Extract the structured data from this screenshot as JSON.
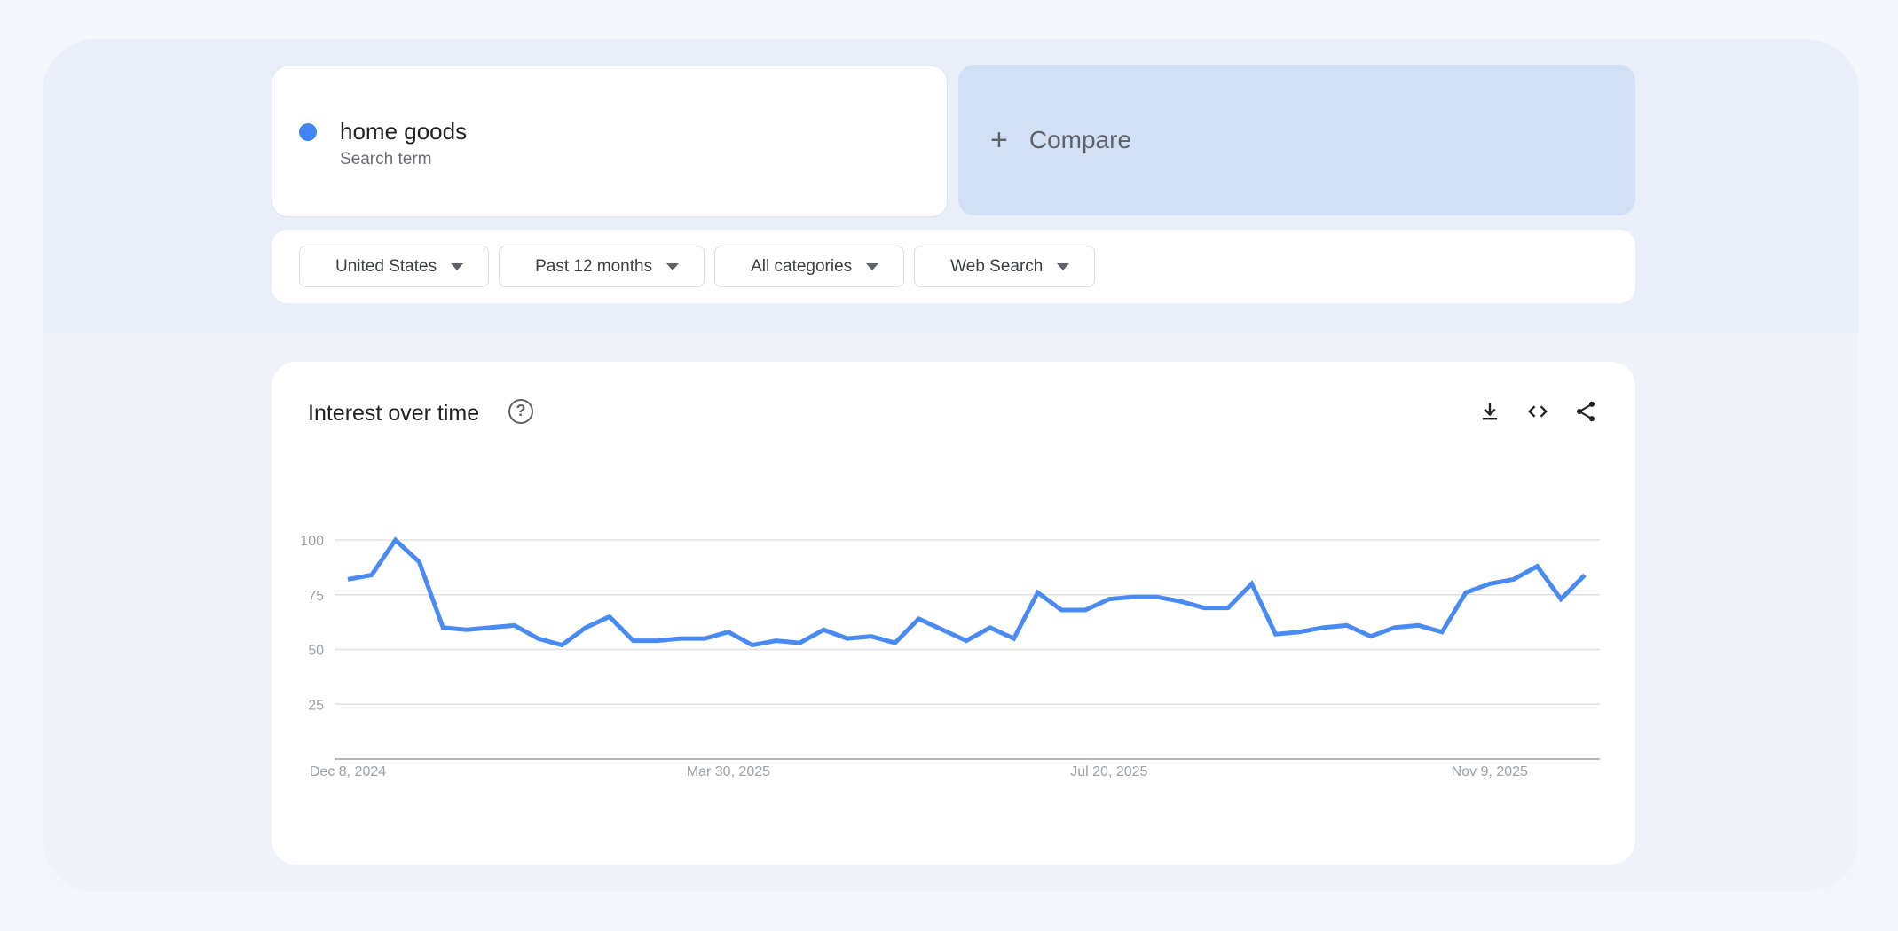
{
  "search": {
    "term": "home goods",
    "subtitle": "Search term",
    "color": "#4285f4"
  },
  "compare": {
    "label": "Compare"
  },
  "filters": [
    {
      "label": "United States"
    },
    {
      "label": "Past 12 months"
    },
    {
      "label": "All categories"
    },
    {
      "label": "Web Search"
    }
  ],
  "chart": {
    "title": "Interest over time"
  },
  "chart_data": {
    "type": "line",
    "title": "Interest over time",
    "x_start": "2024-12-08",
    "x_interval": "weekly",
    "xtick_labels": [
      "Dec 8, 2024",
      "Mar 30, 2025",
      "Jul 20, 2025",
      "Nov 9, 2025"
    ],
    "xtick_indices": [
      0,
      16,
      32,
      48
    ],
    "ytick_labels": [
      "100",
      "75",
      "50",
      "25"
    ],
    "ylim": [
      0,
      100
    ],
    "grid": true,
    "series": [
      {
        "color": "#4a8af4",
        "values": [
          82,
          84,
          100,
          90,
          60,
          59,
          60,
          61,
          55,
          52,
          60,
          65,
          54,
          54,
          55,
          55,
          58,
          52,
          54,
          53,
          59,
          55,
          56,
          53,
          64,
          59,
          54,
          60,
          55,
          76,
          68,
          68,
          73,
          74,
          74,
          72,
          69,
          69,
          80,
          57,
          58,
          60,
          61,
          56,
          60,
          61,
          58,
          76,
          80,
          82,
          88,
          73,
          84
        ]
      }
    ]
  }
}
